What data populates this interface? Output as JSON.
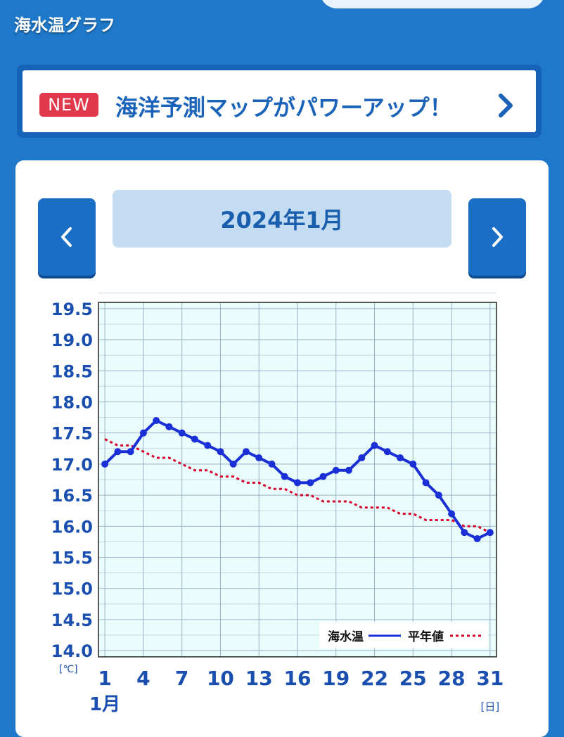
{
  "header": {
    "section_title": "海水温グラフ"
  },
  "banner": {
    "badge": "NEW",
    "text": "海洋予測マップがパワーアップ！"
  },
  "month_label": "2024年1月",
  "colors": {
    "background": "#1f78c9",
    "sea_temp_line": "#1a2fd6",
    "normal_line": "#d9002a",
    "plot_bg": "#eafdfd",
    "new_badge": "#e0394c"
  },
  "chart_data": {
    "type": "line",
    "x": [
      1,
      2,
      3,
      4,
      5,
      6,
      7,
      8,
      9,
      10,
      11,
      12,
      13,
      14,
      15,
      16,
      17,
      18,
      19,
      20,
      21,
      22,
      23,
      24,
      25,
      26,
      27,
      28,
      29,
      30,
      31
    ],
    "x_ticks": [
      "1",
      "4",
      "7",
      "10",
      "13",
      "16",
      "19",
      "22",
      "25",
      "28",
      "31"
    ],
    "x_tick_values": [
      1,
      4,
      7,
      10,
      13,
      16,
      19,
      22,
      25,
      28,
      31
    ],
    "xlabel_start": "1月",
    "xunit": "[日]",
    "yunit": "[℃]",
    "ylim": [
      13.9,
      19.6
    ],
    "y_ticks": [
      "14.0",
      "14.5",
      "15.0",
      "15.5",
      "16.0",
      "16.5",
      "17.0",
      "17.5",
      "18.0",
      "18.5",
      "19.0",
      "19.5"
    ],
    "y_tick_values": [
      14.0,
      14.5,
      15.0,
      15.5,
      16.0,
      16.5,
      17.0,
      17.5,
      18.0,
      18.5,
      19.0,
      19.5
    ],
    "grid": true,
    "legend_position": "bottom-right",
    "series": [
      {
        "name": "海水温",
        "style": "solid-with-markers",
        "values": [
          17.0,
          17.2,
          17.2,
          17.5,
          17.7,
          17.6,
          17.5,
          17.4,
          17.3,
          17.2,
          17.0,
          17.2,
          17.1,
          17.0,
          16.8,
          16.7,
          16.7,
          16.8,
          16.9,
          16.9,
          17.1,
          17.3,
          17.2,
          17.1,
          17.0,
          16.7,
          16.5,
          16.2,
          15.9,
          15.8,
          15.9
        ]
      },
      {
        "name": "平年値",
        "style": "dotted",
        "values": [
          17.4,
          17.3,
          17.3,
          17.2,
          17.1,
          17.1,
          17.0,
          16.9,
          16.9,
          16.8,
          16.8,
          16.7,
          16.7,
          16.6,
          16.6,
          16.5,
          16.5,
          16.4,
          16.4,
          16.4,
          16.3,
          16.3,
          16.3,
          16.2,
          16.2,
          16.1,
          16.1,
          16.1,
          16.0,
          16.0,
          15.9
        ]
      }
    ]
  }
}
